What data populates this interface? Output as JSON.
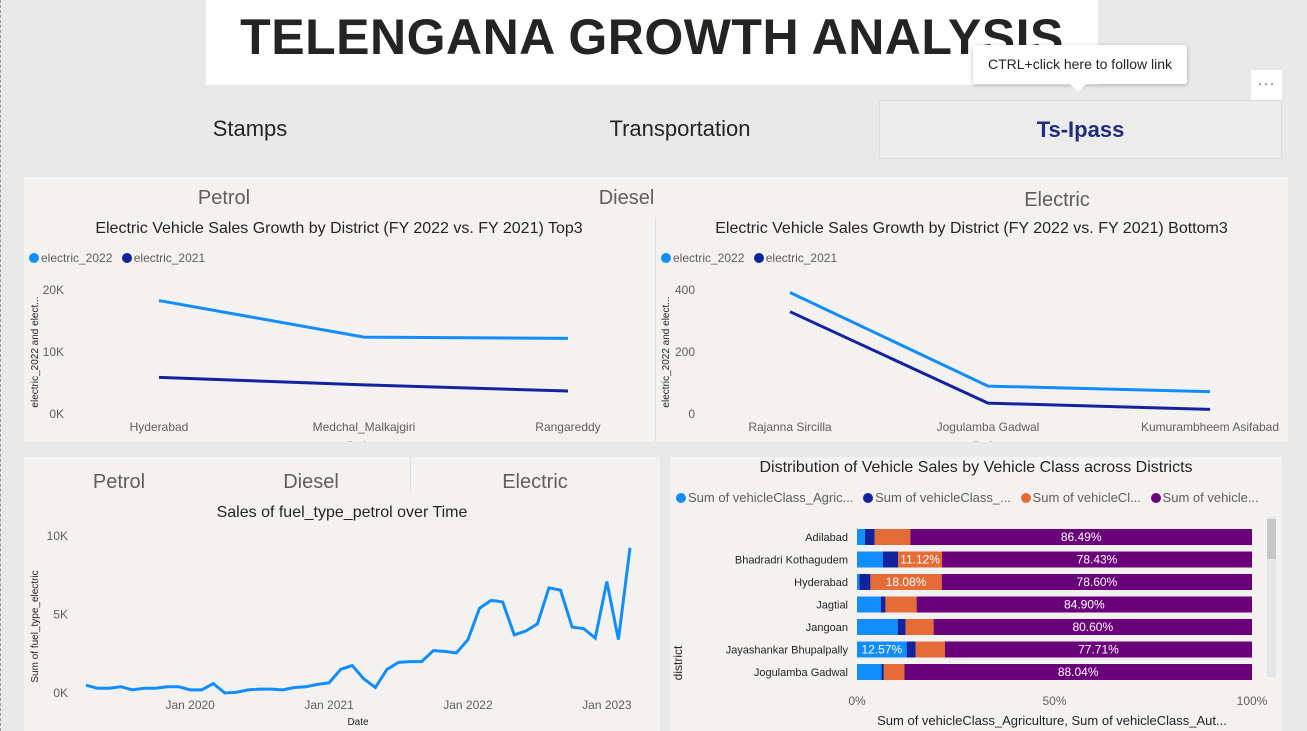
{
  "header": {
    "title": "TELENGANA GROWTH ANALYSIS"
  },
  "tooltip": {
    "text": "CTRL+click here to follow link"
  },
  "more_label": "···",
  "nav": [
    "Stamps",
    "Transportation",
    "Ts-Ipass"
  ],
  "top_panel": {
    "segments": [
      "Petrol",
      "Diesel",
      "Electric"
    ],
    "chart_left": {
      "title": "Electric Vehicle Sales Growth by District (FY 2022 vs. FY 2021) Top3"
    },
    "chart_right": {
      "title": "Electric Vehicle Sales Growth by District (FY 2022 vs. FY 2021) Bottom3"
    }
  },
  "bottom_left": {
    "segments": [
      "Petrol",
      "Diesel",
      "Electric"
    ],
    "title": "Sales of fuel_type_petrol over Time"
  },
  "bottom_right": {
    "title": "Distribution of Vehicle Sales by Vehicle Class across Districts"
  },
  "colors": {
    "light_blue": "#118dff",
    "dark_blue": "#12239e",
    "orange": "#e66c37",
    "purple": "#6b007b"
  },
  "chart_data": [
    {
      "type": "line",
      "title": "Electric Vehicle Sales Growth by District (FY 2022 vs. FY 2021) Top3",
      "xlabel": "district",
      "ylabel": "electric_2022 and elect...",
      "categories": [
        "Hyderabad",
        "Medchal_Malkajgiri",
        "Rangareddy"
      ],
      "series": [
        {
          "name": "electric_2022",
          "values": [
            18300,
            12400,
            12200
          ]
        },
        {
          "name": "electric_2021",
          "values": [
            5900,
            4700,
            3700
          ]
        }
      ],
      "ylim": [
        0,
        20000
      ],
      "yticks": [
        "0K",
        "10K",
        "20K"
      ],
      "legend": "top-left",
      "grid": false
    },
    {
      "type": "line",
      "title": "Electric Vehicle Sales Growth by District (FY 2022 vs. FY 2021) Bottom3",
      "xlabel": "district",
      "ylabel": "electric_2022 and elect...",
      "categories": [
        "Rajanna Sircilla",
        "Jogulamba Gadwal",
        "Kumurambheem Asifabad"
      ],
      "series": [
        {
          "name": "electric_2022",
          "values": [
            392,
            90,
            72
          ]
        },
        {
          "name": "electric_2021",
          "values": [
            330,
            35,
            15
          ]
        }
      ],
      "ylim": [
        0,
        400
      ],
      "yticks": [
        "0",
        "200",
        "400"
      ],
      "legend": "top-left",
      "grid": false
    },
    {
      "type": "line",
      "title": "Sales of fuel_type_petrol over Time",
      "xlabel": "Date",
      "ylabel": "Sum of fuel_type_electric",
      "x": [
        "2019-04",
        "2019-05",
        "2019-06",
        "2019-07",
        "2019-08",
        "2019-09",
        "2019-10",
        "2019-11",
        "2019-12",
        "2020-01",
        "2020-02",
        "2020-03",
        "2020-04",
        "2020-05",
        "2020-06",
        "2020-07",
        "2020-08",
        "2020-09",
        "2020-10",
        "2020-11",
        "2020-12",
        "2021-01",
        "2021-02",
        "2021-03",
        "2021-04",
        "2021-05",
        "2021-06",
        "2021-07",
        "2021-08",
        "2021-09",
        "2021-10",
        "2021-11",
        "2021-12",
        "2022-01",
        "2022-02",
        "2022-03",
        "2022-04",
        "2022-05",
        "2022-06",
        "2022-07",
        "2022-08",
        "2022-09",
        "2022-10",
        "2022-11",
        "2022-12",
        "2023-01",
        "2023-02",
        "2023-03"
      ],
      "values": [
        500,
        300,
        300,
        400,
        200,
        300,
        300,
        400,
        400,
        200,
        200,
        600,
        0,
        50,
        200,
        250,
        250,
        200,
        350,
        400,
        550,
        650,
        1500,
        1750,
        900,
        350,
        1500,
        1950,
        2000,
        2000,
        2700,
        2650,
        2550,
        3400,
        5400,
        5900,
        5800,
        3700,
        3950,
        4400,
        6700,
        6550,
        4200,
        4100,
        3500,
        7100,
        3400,
        9250
      ],
      "xticks": [
        "Jan 2020",
        "Jan 2021",
        "Jan 2022",
        "Jan 2023"
      ],
      "ylim": [
        0,
        10000
      ],
      "yticks": [
        "0K",
        "5K",
        "10K"
      ],
      "grid": false
    },
    {
      "type": "bar",
      "orientation": "horizontal-stacked-100",
      "title": "Distribution of Vehicle Sales by Vehicle Class across Districts",
      "ylabel": "district",
      "xlabel": "Sum of vehicleClass_Agriculture, Sum of vehicleClass_Aut...",
      "legend": "top",
      "legend_labels": [
        "Sum of vehicleClass_Agric...",
        "Sum of vehicleClass_...",
        "Sum of vehicleCl...",
        "Sum of vehicle..."
      ],
      "categories": [
        "Adilabad",
        "Bhadradri Kothagudem",
        "Hyderabad",
        "Jagtial",
        "Jangoan",
        "Jayashankar Bhupalpally",
        "Jogulamba Gadwal"
      ],
      "series": [
        {
          "values": [
            2.0,
            6.5,
            0.6,
            6.0,
            10.3,
            12.57,
            6.2
          ]
        },
        {
          "values": [
            2.5,
            3.9,
            2.8,
            1.2,
            2.0,
            2.3,
            0.6
          ]
        },
        {
          "values": [
            9.0,
            11.12,
            18.08,
            7.9,
            7.1,
            7.4,
            5.2
          ]
        },
        {
          "values": [
            86.49,
            78.43,
            78.6,
            84.9,
            80.6,
            77.71,
            88.04
          ]
        }
      ],
      "data_labels": [
        [
          null,
          null,
          null,
          "86.49%"
        ],
        [
          null,
          null,
          "11.12%",
          "78.43%"
        ],
        [
          null,
          null,
          "18.08%",
          "78.60%"
        ],
        [
          null,
          null,
          null,
          "84.90%"
        ],
        [
          null,
          null,
          null,
          "80.60%"
        ],
        [
          "12.57%",
          null,
          null,
          "77.71%"
        ],
        [
          null,
          null,
          null,
          "88.04%"
        ]
      ],
      "xticks": [
        "0%",
        "50%",
        "100%"
      ],
      "xlim": [
        0,
        100
      ]
    }
  ]
}
